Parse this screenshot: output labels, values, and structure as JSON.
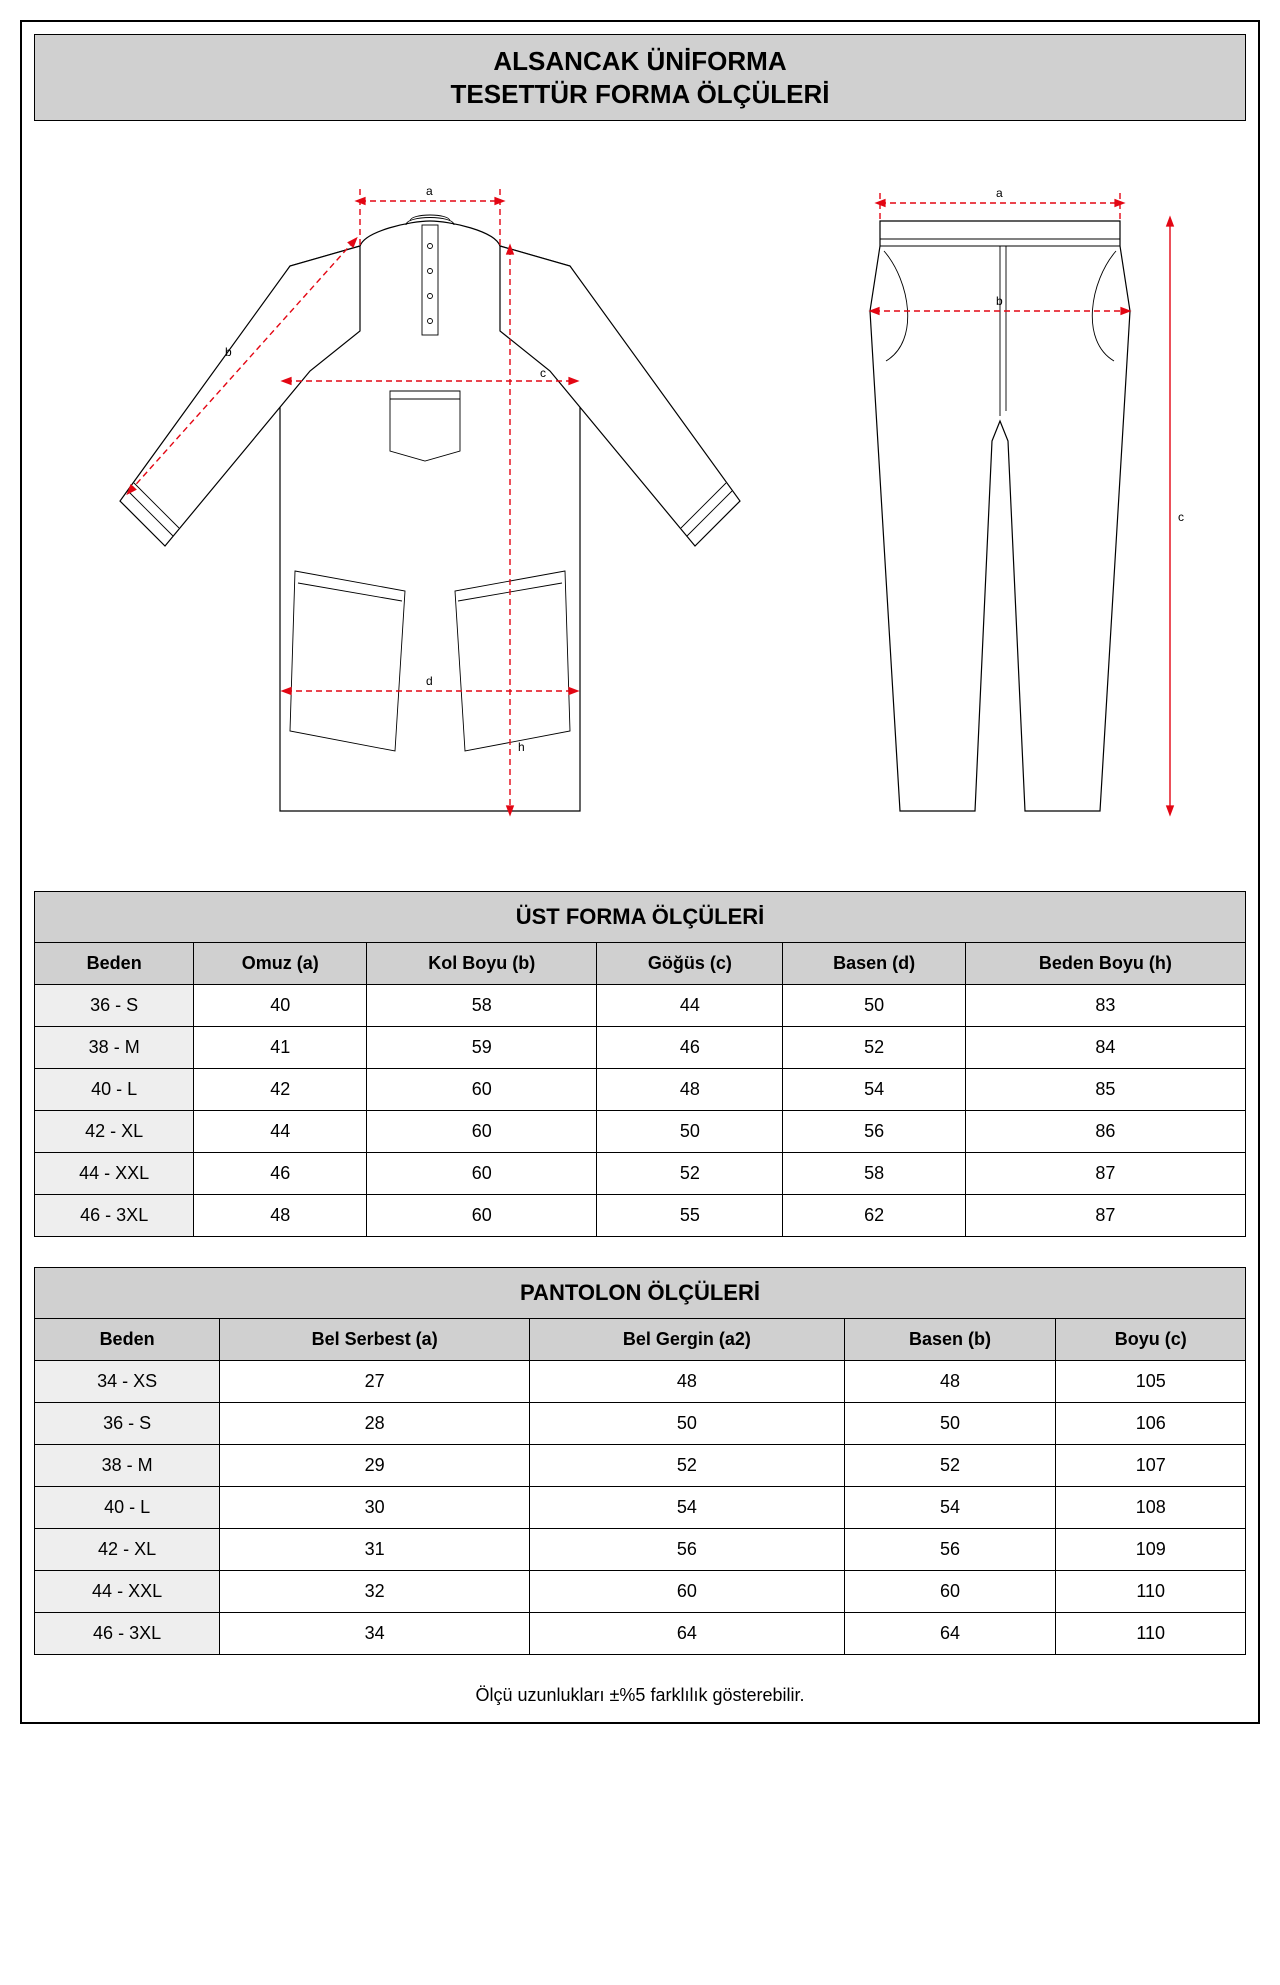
{
  "title_line1": "ALSANCAK ÜNİFORMA",
  "title_line2": "TESETTÜR FORMA ÖLÇÜLERİ",
  "colors": {
    "banner_bg": "#d0d0d0",
    "header_bg": "#d0d0d0",
    "size_bg": "#eeeeee",
    "measure_line": "#e30613",
    "outline": "#000000",
    "page_bg": "#ffffff"
  },
  "diagram": {
    "tunic_labels": {
      "a": "a",
      "b": "b",
      "c": "c",
      "d": "d",
      "h": "h"
    },
    "pants_labels": {
      "a": "a",
      "b": "b",
      "c": "c"
    }
  },
  "top_table": {
    "title": "ÜST FORMA ÖLÇÜLERİ",
    "columns": [
      "Beden",
      "Omuz (a)",
      "Kol Boyu (b)",
      "Göğüs (c)",
      "Basen (d)",
      "Beden Boyu (h)"
    ],
    "rows": [
      [
        "36 - S",
        "40",
        "58",
        "44",
        "50",
        "83"
      ],
      [
        "38 - M",
        "41",
        "59",
        "46",
        "52",
        "84"
      ],
      [
        "40 - L",
        "42",
        "60",
        "48",
        "54",
        "85"
      ],
      [
        "42 - XL",
        "44",
        "60",
        "50",
        "56",
        "86"
      ],
      [
        "44 - XXL",
        "46",
        "60",
        "52",
        "58",
        "87"
      ],
      [
        "46 - 3XL",
        "48",
        "60",
        "55",
        "62",
        "87"
      ]
    ]
  },
  "pants_table": {
    "title": "PANTOLON ÖLÇÜLERİ",
    "columns": [
      "Beden",
      "Bel Serbest (a)",
      "Bel Gergin (a2)",
      "Basen (b)",
      "Boyu (c)"
    ],
    "rows": [
      [
        "34 - XS",
        "27",
        "48",
        "48",
        "105"
      ],
      [
        "36 - S",
        "28",
        "50",
        "50",
        "106"
      ],
      [
        "38 - M",
        "29",
        "52",
        "52",
        "107"
      ],
      [
        "40 - L",
        "30",
        "54",
        "54",
        "108"
      ],
      [
        "42 - XL",
        "31",
        "56",
        "56",
        "109"
      ],
      [
        "44 - XXL",
        "32",
        "60",
        "60",
        "110"
      ],
      [
        "46 - 3XL",
        "34",
        "64",
        "64",
        "110"
      ]
    ]
  },
  "footnote": "Ölçü uzunlukları ±%5 farklılık gösterebilir."
}
